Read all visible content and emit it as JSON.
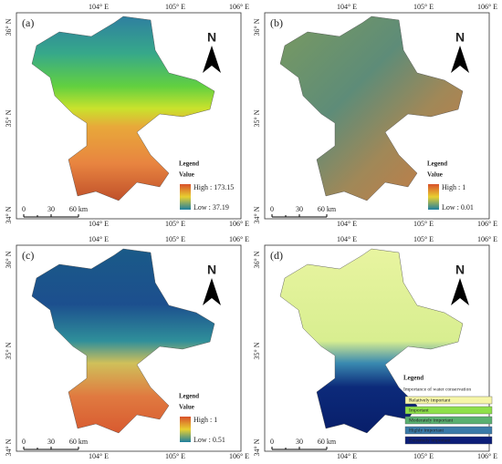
{
  "panels": [
    {
      "label": "(a)",
      "top_axis": [
        "104° E",
        "105° E",
        "106° E"
      ],
      "bottom_axis": [
        "104° E",
        "105° E",
        "106° E"
      ],
      "left_axis": [
        "36° N",
        "35° N",
        "34° N"
      ],
      "north": "N",
      "scale": [
        "0",
        "30",
        "60 km"
      ],
      "legend": {
        "title": "Legend",
        "subtitle": "Value",
        "high": "High : 173.15",
        "low": "Low : 37.19"
      }
    },
    {
      "label": "(b)",
      "top_axis": [
        "104° E",
        "105° E",
        "106° E"
      ],
      "bottom_axis": [
        "104° E",
        "105° E",
        "106° E"
      ],
      "left_axis": [
        "36° N",
        "35° N",
        "34° N"
      ],
      "north": "N",
      "scale": [
        "0",
        "30",
        "60 km"
      ],
      "legend": {
        "title": "Legend",
        "subtitle": "Value",
        "high": "High : 1",
        "low": "Low : 0.01"
      }
    },
    {
      "label": "(c)",
      "top_axis": [
        "104° E",
        "105° E",
        "106° E"
      ],
      "bottom_axis": [
        "104° E",
        "105° E",
        "106° E"
      ],
      "left_axis": [
        "36° N",
        "35° N",
        "34° N"
      ],
      "north": "N",
      "scale": [
        "0",
        "30",
        "60 km"
      ],
      "legend": {
        "title": "Legend",
        "subtitle": "Value",
        "high": "High : 1",
        "low": "Low : 0.51"
      }
    },
    {
      "label": "(d)",
      "top_axis": [
        "104° E",
        "105° E",
        "106° E"
      ],
      "bottom_axis": [
        "104° E",
        "105° E",
        "106° E"
      ],
      "left_axis": [
        "36° N",
        "35° N",
        "34° N"
      ],
      "north": "N",
      "scale": [
        "0",
        "30",
        "60 km"
      ],
      "legend": {
        "title": "Legend",
        "subtitle": "Importance of water conservation",
        "items": [
          "Relatively important",
          "Important",
          "Moderately important",
          "Highly important",
          "Extremely important"
        ]
      }
    }
  ]
}
